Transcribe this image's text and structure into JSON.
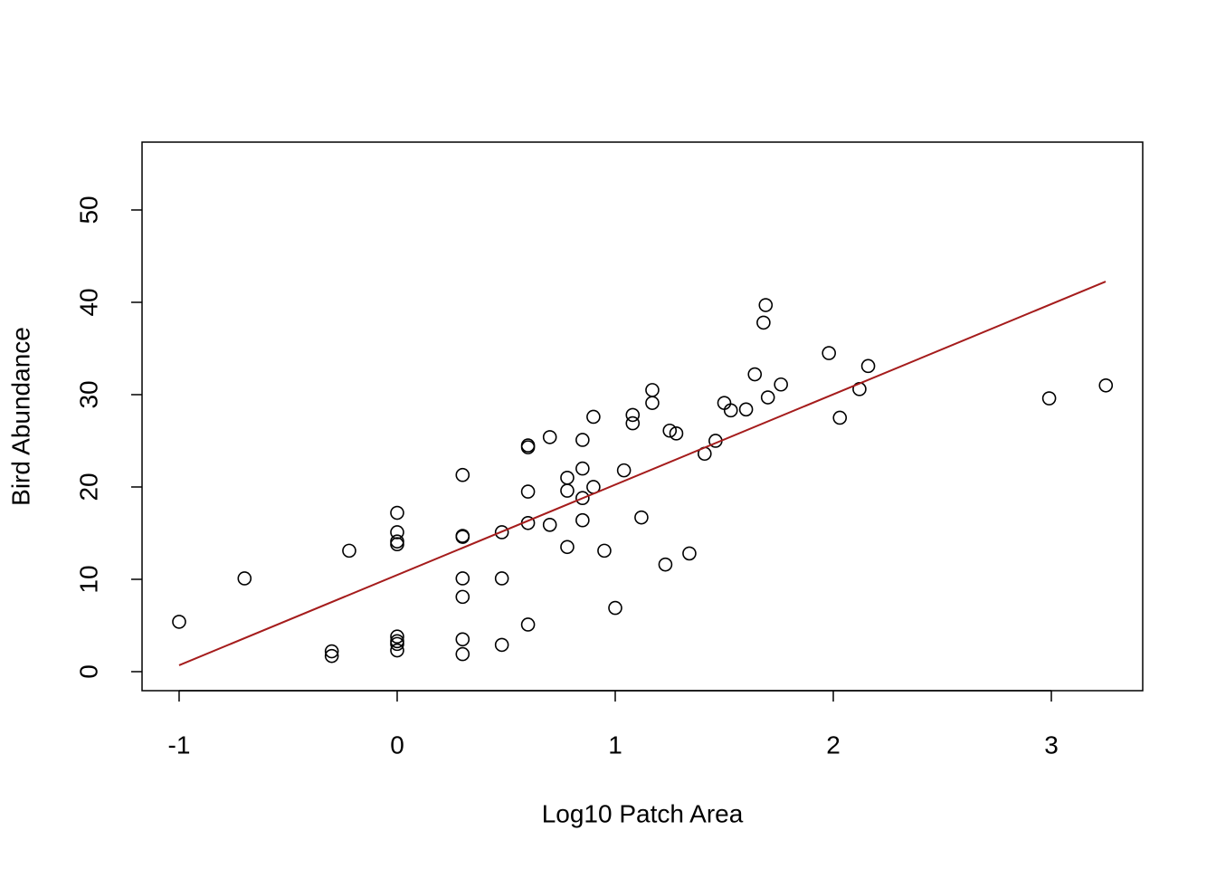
{
  "chart_data": {
    "type": "scatter",
    "xlabel": "Log10 Patch Area",
    "ylabel": "Bird Abundance",
    "x": [
      -1,
      -0.7,
      -0.3,
      -0.3,
      -0.22,
      0,
      0,
      0,
      0,
      0,
      0,
      0,
      0,
      0.3,
      0.3,
      0.3,
      0.3,
      0.3,
      0.3,
      0.3,
      0.48,
      0.48,
      0.48,
      0.6,
      0.6,
      0.6,
      0.6,
      0.6,
      0.7,
      0.7,
      0.78,
      0.78,
      0.78,
      0.85,
      0.85,
      0.85,
      0.85,
      0.9,
      0.9,
      0.95,
      1.0,
      1.04,
      1.08,
      1.08,
      1.12,
      1.17,
      1.17,
      1.23,
      1.25,
      1.28,
      1.34,
      1.41,
      1.46,
      1.5,
      1.53,
      1.6,
      1.64,
      1.68,
      1.69,
      1.7,
      1.76,
      1.98,
      2.03,
      2.12,
      2.16,
      2.99,
      3.25
    ],
    "values": [
      5.4,
      10.1,
      2.2,
      1.7,
      13.1,
      17.2,
      15.1,
      14.1,
      13.8,
      3.8,
      3.3,
      3.0,
      2.3,
      21.3,
      14.7,
      14.6,
      10.1,
      8.1,
      3.5,
      1.9,
      15.1,
      10.1,
      2.9,
      24.5,
      24.3,
      19.5,
      16.1,
      5.1,
      25.4,
      15.9,
      21.0,
      19.6,
      13.5,
      25.1,
      22.0,
      18.8,
      16.4,
      27.6,
      20.0,
      13.1,
      6.9,
      21.8,
      27.8,
      26.9,
      16.7,
      30.5,
      29.1,
      11.6,
      26.1,
      25.8,
      12.8,
      23.6,
      25.0,
      29.1,
      28.3,
      28.4,
      32.2,
      37.8,
      39.7,
      29.7,
      31.1,
      34.5,
      27.5,
      30.6,
      33.1,
      29.6,
      31.0
    ],
    "color": "#000000",
    "fit_line": {
      "x": [
        -1,
        3.249
      ],
      "values": [
        0.69,
        42.25
      ],
      "color": "#a51c1c"
    },
    "xlim": [
      -1.17,
      3.419
    ],
    "ylim": [
      -2.06,
      57.35
    ],
    "xticks": [
      -1,
      0,
      1,
      2,
      3
    ],
    "yticks": [
      0,
      10,
      20,
      30,
      40,
      50
    ],
    "grid": false
  }
}
